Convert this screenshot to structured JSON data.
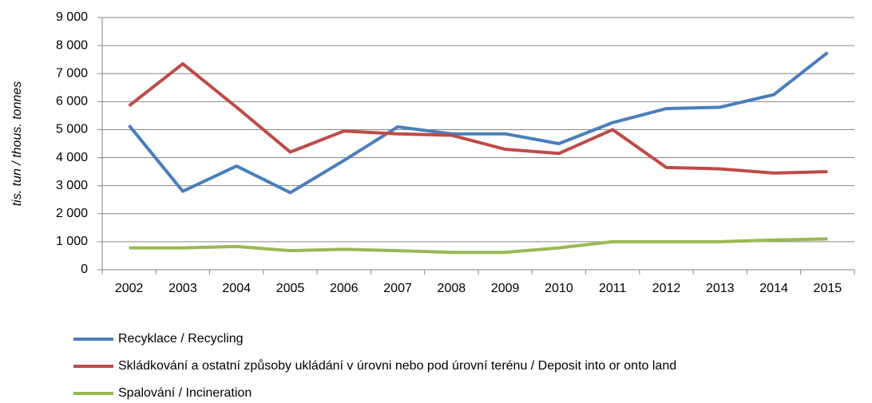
{
  "chart_data": {
    "type": "line",
    "y_label": "tis. tun / thous. tonnes",
    "categories": [
      "2002",
      "2003",
      "2004",
      "2005",
      "2006",
      "2007",
      "2008",
      "2009",
      "2010",
      "2011",
      "2012",
      "2013",
      "2014",
      "2015"
    ],
    "series": [
      {
        "name": "Recyklace / Recycling",
        "color": "#4a7ebb",
        "values": [
          5150,
          2800,
          3700,
          2750,
          3900,
          5100,
          4850,
          4850,
          4500,
          5250,
          5750,
          5800,
          6250,
          7750
        ]
      },
      {
        "name": "Skládkování a ostatní způsoby ukládání v úrovni nebo pod úrovní terénu / Deposit into or onto land",
        "color": "#be4b48",
        "values": [
          5850,
          7350,
          5800,
          4200,
          4950,
          4850,
          4800,
          4300,
          4150,
          5000,
          3650,
          3600,
          3450,
          3500
        ]
      },
      {
        "name": "Spalování / Incineration",
        "color": "#98b954",
        "values": [
          780,
          780,
          830,
          680,
          730,
          680,
          620,
          620,
          780,
          1000,
          1000,
          1000,
          1060,
          1100
        ]
      }
    ],
    "ylim": [
      0,
      9000
    ],
    "yticks": [
      0,
      {
        "value": 1000,
        "label": "1 000"
      },
      {
        "value": 2000,
        "label": "2 000"
      },
      {
        "value": 3000,
        "label": "3 000"
      },
      {
        "value": 4000,
        "label": "4 000"
      },
      {
        "value": 5000,
        "label": "5 000"
      },
      {
        "value": 6000,
        "label": "6 000"
      },
      {
        "value": 7000,
        "label": "7 000"
      },
      {
        "value": 8000,
        "label": "8 000"
      },
      {
        "value": 9000,
        "label": "9 000"
      }
    ],
    "grid": true,
    "legend": "bottom"
  }
}
